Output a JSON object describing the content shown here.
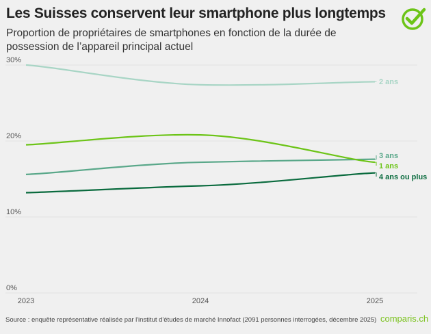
{
  "title": "Les Suisses conservent leur smartphone plus longtemps",
  "subtitle": "Proportion de propriétaires de smartphones en fonction de la durée de possession de l’appareil principal actuel",
  "source": "Source : enquête représentative réalisée par l'institut d'études de marché Innofact (2091 personnes interrogées, décembre 2025)",
  "logo_text": "comparis.ch",
  "colors": {
    "brand": "#7ac21d"
  },
  "chart_data": {
    "type": "line",
    "x": [
      "2023",
      "2024",
      "2025"
    ],
    "ylim": [
      0,
      30
    ],
    "yticks": [
      0,
      10,
      20,
      30
    ],
    "ytick_labels": [
      "0%",
      "10%",
      "20%",
      "30%"
    ],
    "grid": true,
    "legend": "right-end labels",
    "series": [
      {
        "name": "2 ans",
        "values": [
          30,
          27.4,
          27.8
        ],
        "color": "#a8d5c5"
      },
      {
        "name": "3 ans",
        "values": [
          15.6,
          17.2,
          17.6
        ],
        "color": "#5aa88a"
      },
      {
        "name": "1 ans",
        "values": [
          19.5,
          20.8,
          17.2
        ],
        "color": "#6cc417"
      },
      {
        "name": "4 ans ou plus",
        "values": [
          13.2,
          14.1,
          15.8
        ],
        "color": "#0a6b3e"
      }
    ],
    "label_order": [
      "2 ans",
      "3 ans",
      "1 ans",
      "4 ans ou plus"
    ]
  }
}
